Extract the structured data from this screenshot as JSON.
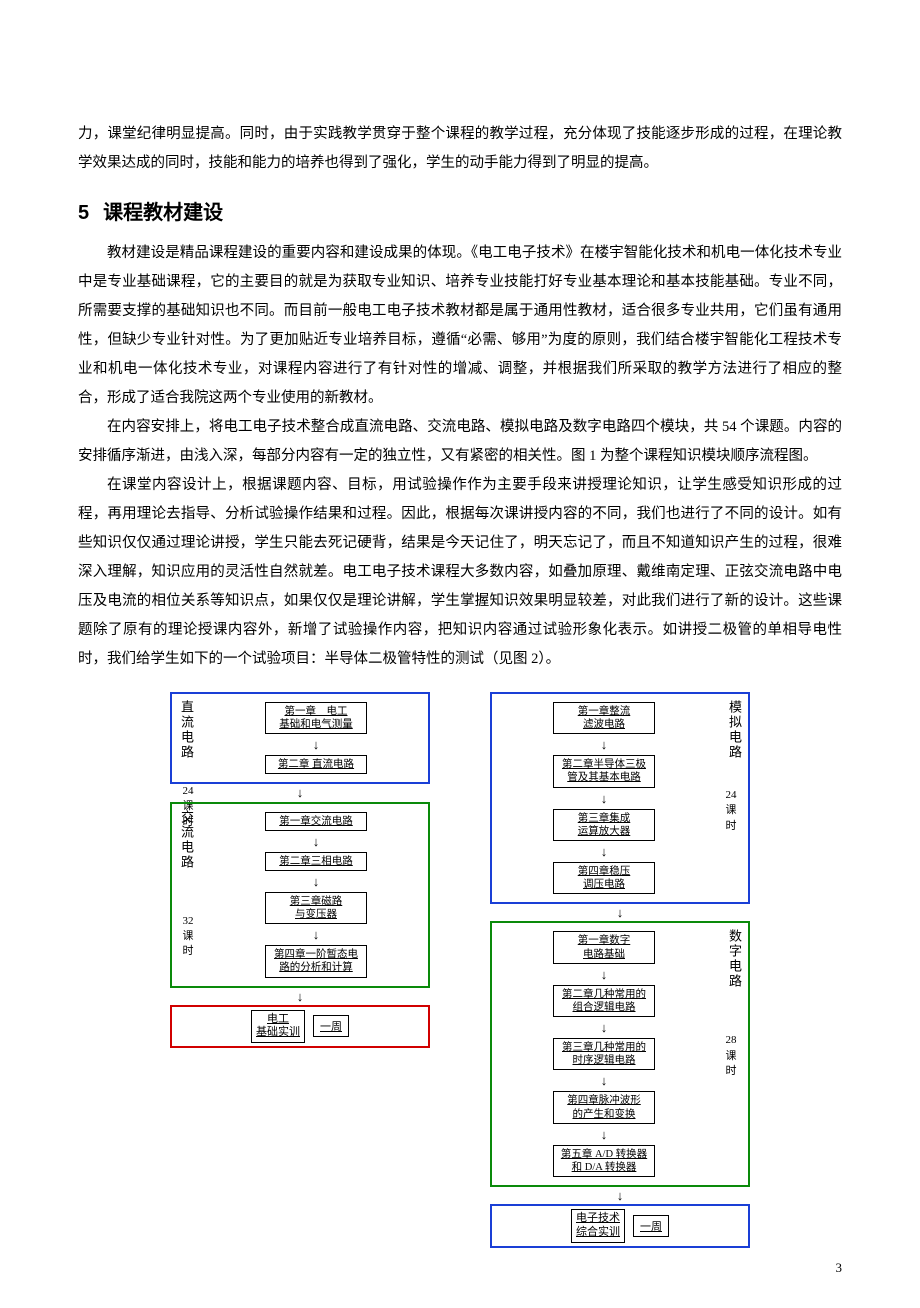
{
  "intro_tail": "力，课堂纪律明显提高。同时，由于实践教学贯穿于整个课程的教学过程，充分体现了技能逐步形成的过程，在理论教学效果达成的同时，技能和能力的培养也得到了强化，学生的动手能力得到了明显的提高。",
  "section": {
    "num": "5",
    "title": "课程教材建设"
  },
  "p1": "教材建设是精品课程建设的重要内容和建设成果的体现。《电工电子技术》在楼宇智能化技术和机电一体化技术专业中是专业基础课程，它的主要目的就是为获取专业知识、培养专业技能打好专业基本理论和基本技能基础。专业不同，所需要支撑的基础知识也不同。而目前一般电工电子技术教材都是属于通用性教材，适合很多专业共用，它们虽有通用性，但缺少专业针对性。为了更加贴近专业培养目标，遵循“必需、够用”为度的原则，我们结合楼宇智能化工程技术专业和机电一体化技术专业，对课程内容进行了有针对性的增减、调整，并根据我们所采取的教学方法进行了相应的整合，形成了适合我院这两个专业使用的新教材。",
  "p2": "在内容安排上，将电工电子技术整合成直流电路、交流电路、模拟电路及数字电路四个模块，共 54 个课题。内容的安排循序渐进，由浅入深，每部分内容有一定的独立性，又有紧密的相关性。图 1 为整个课程知识模块顺序流程图。",
  "p3": "在课堂内容设计上，根据课题内容、目标，用试验操作作为主要手段来讲授理论知识，让学生感受知识形成的过程，再用理论去指导、分析试验操作结果和过程。因此，根据每次课讲授内容的不同，我们也进行了不同的设计。如有些知识仅仅通过理论讲授，学生只能去死记硬背，结果是今天记住了，明天忘记了，而且不知道知识产生的过程，很难深入理解，知识应用的灵活性自然就差。电工电子技术课程大多数内容，如叠加原理、戴维南定理、正弦交流电路中电压及电流的相位关系等知识点，如果仅仅是理论讲解，学生掌握知识效果明显较差，对此我们进行了新的设计。这些课题除了原有的理论授课内容外，新增了试验操作内容，把知识内容通过试验形象化表示。如讲授二极管的单相导电性时，我们给学生如下的一个试验项目：半导体二极管特性的测试（见图 2）。",
  "flow": {
    "type": "flowchart",
    "colors": {
      "dc": "#1a3fd6",
      "ac": "#0a8a0a",
      "analog": "#1a3fd6",
      "digital": "#0a8a0a",
      "final_left": "#d10000",
      "final_right": "#1a3fd6",
      "text": "#000000",
      "background": "#ffffff"
    },
    "left": {
      "dc": {
        "title": "直流电路",
        "hours": "24\n课\n时",
        "chapters": [
          "第一章　电工\n基础和电气测量",
          "第二章 直流电路"
        ]
      },
      "ac": {
        "title": "交流电路",
        "hours": "32\n课\n时",
        "chapters": [
          "第一章交流电路",
          "第二章三相电路",
          "第三章磁路\n与变压器",
          "第四章一阶暂态电\n路的分析和计算"
        ]
      },
      "final": {
        "left": "电工\n基础实训",
        "right": "一周"
      }
    },
    "right": {
      "analog": {
        "title": "模拟电路",
        "hours": "24\n课\n时",
        "chapters": [
          "第一章整流\n滤波电路",
          "第二章半导体三极\n管及其基本电路",
          "第三章集成\n运算放大器",
          "第四章稳压\n调压电路"
        ]
      },
      "digital": {
        "title": "数字电路",
        "hours": "28\n课\n时",
        "chapters": [
          "第一章数字\n电路基础",
          "第二章几种常用的\n组合逻辑电路",
          "第三章几种常用的\n时序逻辑电路",
          "第四章脉冲波形\n的产生和变换",
          "第五章 A/D 转换器\n和 D/A 转换器"
        ]
      },
      "final": {
        "left": "电子技术\n综合实训",
        "right": "一周"
      }
    }
  },
  "page_number": "3"
}
